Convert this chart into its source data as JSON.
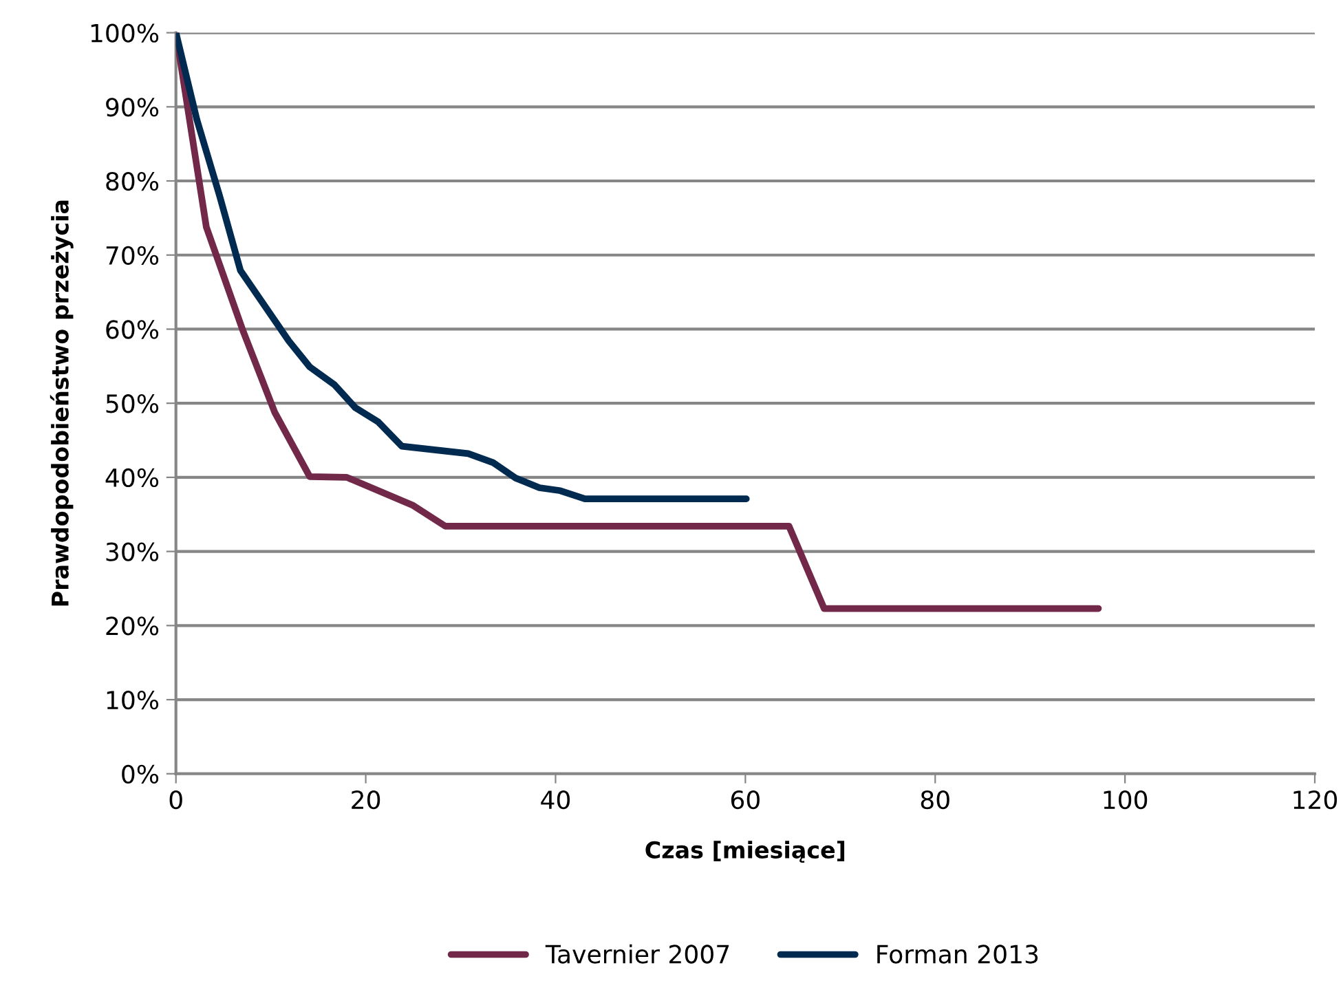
{
  "chart_data": {
    "type": "line",
    "xlabel": "Czas [miesiące]",
    "ylabel": "Prawdopodobieństwo przeżycia",
    "xlim": [
      0,
      120
    ],
    "xticks": [
      0,
      20,
      40,
      60,
      80,
      100,
      120
    ],
    "ylim": [
      0,
      100
    ],
    "yticks": [
      {
        "value": 0,
        "label": "0%"
      },
      {
        "value": 10,
        "label": "10%"
      },
      {
        "value": 20,
        "label": "20%"
      },
      {
        "value": 30,
        "label": "30%"
      },
      {
        "value": 40,
        "label": "40%"
      },
      {
        "value": 50,
        "label": "50%"
      },
      {
        "value": 60,
        "label": "60%"
      },
      {
        "value": 70,
        "label": "70%"
      },
      {
        "value": 80,
        "label": "80%"
      },
      {
        "value": 90,
        "label": "90%"
      },
      {
        "value": 100,
        "label": "100%"
      }
    ],
    "grid": "y",
    "legend": "bottom",
    "marker": "none",
    "line_style": "solid",
    "series": [
      {
        "name": "Tavernier 2007",
        "color": "#722849",
        "x": [
          0,
          3.2,
          7,
          10.4,
          14.1,
          18,
          25,
          28.4,
          64.6,
          68.3,
          97.2
        ],
        "values": [
          100,
          73.8,
          60,
          48.8,
          40.1,
          40,
          36.2,
          33.4,
          33.4,
          22.3,
          22.3
        ]
      },
      {
        "name": "Forman 2013",
        "color": "#002a4f",
        "x": [
          0,
          2.2,
          4.6,
          6.8,
          11.9,
          14.1,
          16.7,
          18.9,
          21.3,
          23.8,
          30.8,
          33.4,
          35.8,
          38.3,
          40.5,
          43.1,
          60.1
        ],
        "values": [
          100,
          88.3,
          78,
          67.9,
          58.4,
          54.9,
          52.5,
          49.4,
          47.5,
          44.2,
          43.2,
          42,
          39.9,
          38.6,
          38.2,
          37.1,
          37.1
        ]
      }
    ]
  }
}
